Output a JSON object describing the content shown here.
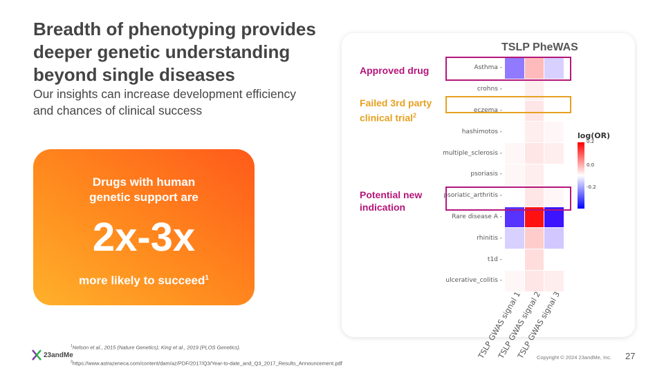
{
  "heading": "Breadth of phenotyping provides deeper genetic understanding beyond single diseases",
  "subheading": "Our insights can increase development efficiency and chances of clinical success",
  "card": {
    "line1": "Drugs with human",
    "line2": "genetic support are",
    "big": "2x-3x",
    "foot": "more likely to succeed",
    "foot_sup": "1"
  },
  "chart_data": {
    "type": "heatmap",
    "title": "TSLP PheWAS",
    "rows": [
      "Asthma",
      "crohns",
      "eczema",
      "hashimotos",
      "multiple_sclerosis",
      "psoriasis",
      "psoriatic_arthritis",
      "Rare disease A",
      "rhinitis",
      "t1d",
      "ulcerative_colitis"
    ],
    "columns": [
      "TSLP GWAS signal 1",
      "TSLP GWAS signal 2",
      "TSLP GWAS signal 3"
    ],
    "values": [
      [
        -0.17,
        0.08,
        -0.06
      ],
      [
        0.0,
        0.02,
        0.0
      ],
      [
        0.0,
        0.03,
        0.0
      ],
      [
        0.0,
        0.02,
        0.01
      ],
      [
        0.01,
        0.03,
        0.02
      ],
      [
        0.01,
        0.02,
        0.0
      ],
      [
        0.0,
        0.03,
        0.01
      ],
      [
        -0.26,
        0.28,
        -0.3
      ],
      [
        -0.06,
        0.06,
        -0.07
      ],
      [
        0.0,
        0.04,
        0.0
      ],
      [
        0.01,
        0.03,
        0.02
      ]
    ],
    "legend": {
      "title": "log(OR)",
      "ticks": [
        "0.2",
        "0.0",
        "-0.2"
      ],
      "high_color": "#ff0000",
      "mid_color": "#ffffff",
      "low_color": "#0000ff"
    }
  },
  "callouts": {
    "approved": {
      "text": "Approved drug",
      "color": "#b5157a"
    },
    "failed": {
      "line1": "Failed 3rd party",
      "line2": "clinical trial",
      "sup": "2",
      "color": "#e6a020"
    },
    "potential": {
      "line1": "Potential new",
      "line2": "indication",
      "color": "#b5157a"
    }
  },
  "footnotes": {
    "f1_sup": "1",
    "f1": "Nelson et al., 2015 (Nature Genetics); King et al., 2019 (PLOS Genetics).",
    "f2_sup": "2",
    "f2": "https://www.astrazeneca.com/content/dam/az/PDF/2017/Q3/Year-to-date_and_Q3_2017_Results_Announcement.pdf"
  },
  "logo_text": "23andMe",
  "copyright": "Copyright © 2024 23andMe, Inc.",
  "page_number": "27"
}
